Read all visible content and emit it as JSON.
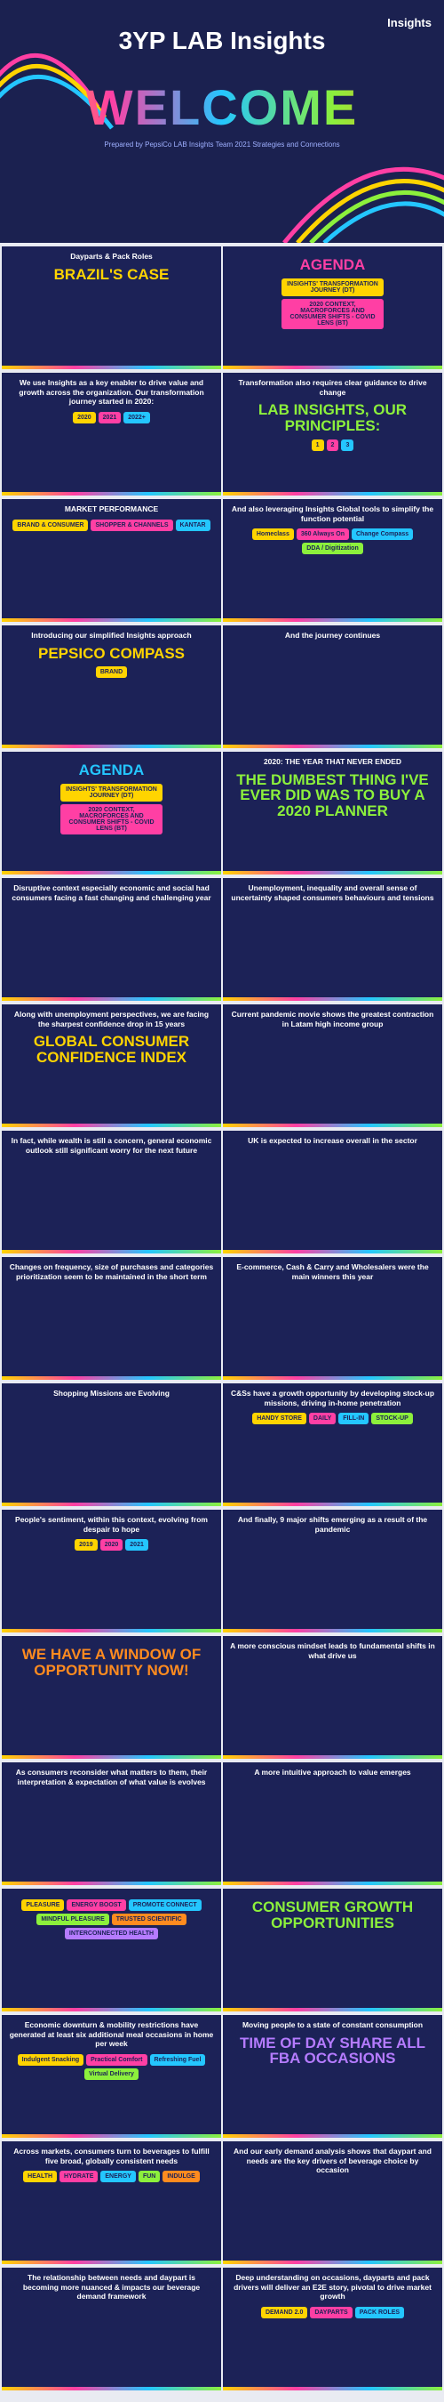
{
  "header": {
    "brand": "Insights",
    "title": "3YP LAB Insights",
    "heading": "WELCOME",
    "subtitle": "Prepared by PepsiCo LAB Insights Team 2021 Strategies and Connections"
  },
  "slides": [
    {
      "heading": "BRAZIL'S CASE",
      "title": "Dayparts & Pack Roles",
      "items": []
    },
    {
      "heading": "AGENDA",
      "items": [
        "INSIGHTS' TRANSFORMATION JOURNEY (DT)",
        "2020 CONTEXT, MACROFORCES AND CONSUMER SHIFTS - COVID LENS (BT)"
      ]
    },
    {
      "title": "We use Insights as a key enabler to drive value and growth across the organization. Our transformation journey started in 2020:",
      "items": [
        "2020",
        "2021",
        "2022+"
      ]
    },
    {
      "title": "Transformation also requires clear guidance to drive change",
      "heading": "LAB INSIGHTS, OUR PRINCIPLES:",
      "items": [
        "1",
        "2",
        "3"
      ]
    },
    {
      "title": "MARKET PERFORMANCE",
      "items": [
        "BRAND & CONSUMER",
        "SHOPPER & CHANNELS",
        "KANTAR"
      ]
    },
    {
      "title": "And also leveraging Insights Global tools to simplify the function potential",
      "items": [
        "Homeclass",
        "360 Always On",
        "Change Compass",
        "DDA / Digitization"
      ]
    },
    {
      "title": "Introducing our simplified Insights approach",
      "heading": "PEPSICO COMPASS",
      "items": [
        "BRAND"
      ]
    },
    {
      "title": "And the journey continues",
      "items": []
    },
    {
      "heading": "AGENDA",
      "items": [
        "INSIGHTS' TRANSFORMATION JOURNEY (DT)",
        "2020 CONTEXT, MACROFORCES AND CONSUMER SHIFTS - COVID LENS (BT)"
      ]
    },
    {
      "title": "2020: THE YEAR THAT NEVER ENDED",
      "heading": "THE DUMBEST THING I'VE EVER DID WAS TO BUY A 2020 PLANNER",
      "items": []
    },
    {
      "title": "Disruptive context especially economic and social had consumers facing a fast changing and challenging year",
      "items": []
    },
    {
      "title": "Unemployment, inequality and overall sense of uncertainty shaped consumers behaviours and tensions",
      "items": []
    },
    {
      "title": "Along with unemployment perspectives, we are facing the sharpest confidence drop in 15 years",
      "heading": "GLOBAL CONSUMER CONFIDENCE INDEX",
      "items": []
    },
    {
      "title": "Current pandemic movie shows the greatest contraction in Latam high income group",
      "items": []
    },
    {
      "title": "In fact, while wealth is still a concern, general economic outlook still significant worry for the next future",
      "items": []
    },
    {
      "title": "UK is expected to increase overall in the sector",
      "items": []
    },
    {
      "title": "Changes on frequency, size of purchases and categories prioritization seem to be maintained in the short term",
      "items": []
    },
    {
      "title": "E-commerce, Cash & Carry and Wholesalers were the main winners this year",
      "items": []
    },
    {
      "title": "Shopping Missions are Evolving",
      "items": []
    },
    {
      "title": "C&Ss have a growth opportunity by developing stock-up missions, driving in-home penetration",
      "items": [
        "HANDY STORE",
        "DAILY",
        "FILL-IN",
        "STOCK-UP"
      ]
    },
    {
      "title": "People's sentiment, within this context, evolving from despair to hope",
      "items": [
        "2019",
        "2020",
        "2021"
      ]
    },
    {
      "title": "And finally, 9 major shifts emerging as a result of the pandemic",
      "items": []
    },
    {
      "heading": "WE HAVE A WINDOW OF OPPORTUNITY NOW!",
      "items": []
    },
    {
      "title": "A more conscious mindset leads to fundamental shifts in what drive us",
      "items": []
    },
    {
      "title": "As consumers reconsider what matters to them, their interpretation & expectation of what value is evolves",
      "items": []
    },
    {
      "title": "A more intuitive approach to value emerges",
      "items": []
    },
    {
      "title": "",
      "items": [
        "PLEASURE",
        "ENERGY BOOST",
        "PROMOTE CONNECT",
        "MINDFUL PLEASURE",
        "TRUSTED SCIENTIFIC",
        "INTERCONNECTED HEALTH"
      ]
    },
    {
      "heading": "CONSUMER GROWTH OPPORTUNITIES",
      "items": []
    },
    {
      "title": "Economic downturn & mobility restrictions have generated at least six additional meal occasions in home per week",
      "items": [
        "Indulgent Snacking",
        "Practical Comfort",
        "Refreshing Fuel",
        "Virtual Delivery"
      ]
    },
    {
      "title": "Moving people to a state of constant consumption",
      "heading": "TIME OF DAY SHARE ALL FBA OCCASIONS",
      "items": []
    },
    {
      "title": "Across markets, consumers turn to beverages to fulfill five broad, globally consistent needs",
      "items": [
        "HEALTH",
        "HYDRATE",
        "ENERGY",
        "FUN",
        "INDULGE"
      ]
    },
    {
      "title": "And our early demand analysis shows that daypart and needs are the key drivers of beverage choice by occasion",
      "items": []
    },
    {
      "title": "The relationship between needs and daypart is becoming more nuanced & impacts our beverage demand framework",
      "items": []
    },
    {
      "title": "Deep understanding on occasions, dayparts and pack drivers will deliver an E2E story, pivotal to drive market growth",
      "items": [
        "DEMAND 2.0",
        "DAYPARTS",
        "PACK ROLES"
      ]
    }
  ]
}
